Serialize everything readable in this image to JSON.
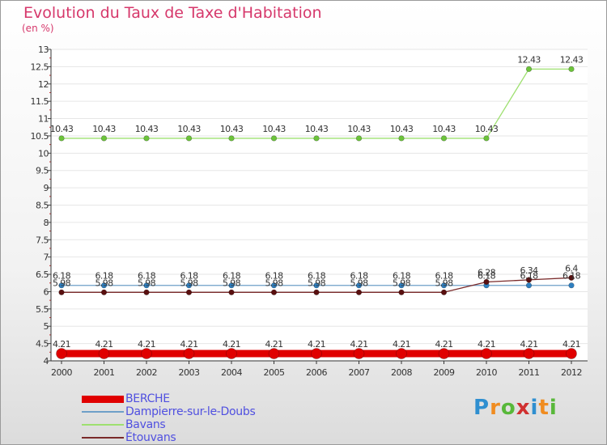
{
  "chart_data": {
    "type": "line",
    "title": "Evolution du Taux de Taxe d'Habitation",
    "subtitle": "(en %)",
    "x": [
      "2000",
      "2001",
      "2002",
      "2003",
      "2004",
      "2005",
      "2006",
      "2007",
      "2008",
      "2009",
      "2010",
      "2011",
      "2012"
    ],
    "ylim": [
      4,
      13
    ],
    "yticks": [
      4,
      4.5,
      5,
      5.5,
      6,
      6.5,
      7,
      7.5,
      8,
      8.5,
      9,
      9.5,
      10,
      10.5,
      11,
      11.5,
      12,
      12.5,
      13
    ],
    "ytick_labels": [
      "4",
      "4.5",
      "5",
      "5.5",
      "6",
      "6.5",
      "7",
      "7.5",
      "8",
      "8.5",
      "9",
      "9.5",
      "10",
      "10.5",
      "11",
      "11.5",
      "12",
      "12.5",
      "13"
    ],
    "series": [
      {
        "name": "BERCHE",
        "color": "#e00000",
        "marker": "#e00000",
        "values": [
          4.21,
          4.21,
          4.21,
          4.21,
          4.21,
          4.21,
          4.21,
          4.21,
          4.21,
          4.21,
          4.21,
          4.21,
          4.21
        ],
        "labels": [
          "4.21",
          "4.21",
          "4.21",
          "4.21",
          "4.21",
          "4.21",
          "4.21",
          "4.21",
          "4.21",
          "4.21",
          "4.21",
          "4.21",
          "4.21"
        ]
      },
      {
        "name": "Dampierre-sur-le-Doubs",
        "color": "#6e9fc8",
        "marker": "#2e7fc0",
        "values": [
          6.18,
          6.18,
          6.18,
          6.18,
          6.18,
          6.18,
          6.18,
          6.18,
          6.18,
          6.18,
          6.18,
          6.18,
          6.18
        ],
        "labels": [
          "6.18",
          "6.18",
          "6.18",
          "6.18",
          "6.18",
          "6.18",
          "6.18",
          "6.18",
          "6.18",
          "6.18",
          "6.18",
          "6.18",
          "6.18"
        ]
      },
      {
        "name": "Bavans",
        "color": "#9ee070",
        "marker": "#6cc43a",
        "values": [
          10.43,
          10.43,
          10.43,
          10.43,
          10.43,
          10.43,
          10.43,
          10.43,
          10.43,
          10.43,
          10.43,
          12.43,
          12.43
        ],
        "labels": [
          "10.43",
          "10.43",
          "10.43",
          "10.43",
          "10.43",
          "10.43",
          "10.43",
          "10.43",
          "10.43",
          "10.43",
          "10.43",
          "12.43",
          "12.43"
        ]
      },
      {
        "name": "Étouvans",
        "color": "#7a2a2a",
        "marker": "#5a1010",
        "values": [
          5.98,
          5.98,
          5.98,
          5.98,
          5.98,
          5.98,
          5.98,
          5.98,
          5.98,
          5.98,
          6.28,
          6.34,
          6.4
        ],
        "labels": [
          "5.98",
          "5.98",
          "5.98",
          "5.98",
          "5.98",
          "5.98",
          "5.98",
          "5.98",
          "5.98",
          "5.98",
          "6.28",
          "6.34",
          "6.4"
        ]
      }
    ]
  },
  "logo": {
    "letters": [
      "P",
      "r",
      "o",
      "x",
      "i",
      "t",
      "i"
    ],
    "colors": [
      "#2f8fd0",
      "#f08c20",
      "#58b83a",
      "#d03030",
      "#2f8fd0",
      "#f08c20",
      "#58b83a"
    ]
  }
}
